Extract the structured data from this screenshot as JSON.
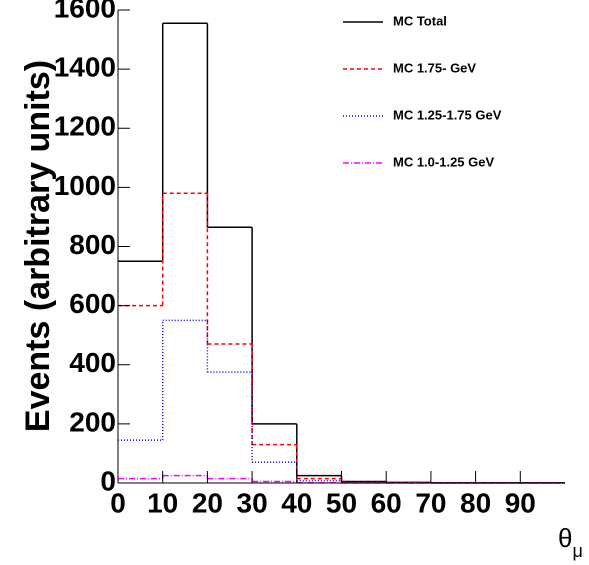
{
  "chart_data": {
    "type": "histogram",
    "y_label": "Events (arbitrary units)",
    "x_label": {
      "symbol": "θ",
      "subscript": "μ"
    },
    "bins": [
      0,
      10,
      20,
      30,
      40,
      50,
      60,
      70,
      80,
      90,
      100
    ],
    "series": [
      {
        "name": "MC Total",
        "color": "#000000",
        "dash": "none",
        "values": [
          750,
          1555,
          865,
          200,
          25,
          5,
          2,
          1,
          1,
          1
        ]
      },
      {
        "name": "MC 1.75- GeV",
        "color": "#ff0000",
        "dash": "4 3",
        "values": [
          600,
          980,
          470,
          130,
          15,
          2,
          1,
          0,
          0,
          0
        ]
      },
      {
        "name": "MC 1.25-1.75 GeV",
        "color": "#0000cc",
        "dash": "1 2",
        "values": [
          145,
          550,
          375,
          70,
          8,
          1,
          0,
          0,
          0,
          0
        ]
      },
      {
        "name": "MC 1.0-1.25 GeV",
        "color": "#ff00ff",
        "dash": "6 2 1 2",
        "values": [
          15,
          25,
          15,
          5,
          1,
          0,
          0,
          0,
          0,
          0
        ]
      }
    ],
    "xlim": [
      0,
      100
    ],
    "xticks": [
      0,
      10,
      20,
      30,
      40,
      50,
      60,
      70,
      80,
      90
    ],
    "ylim": [
      0,
      1600
    ],
    "yticks": [
      0,
      200,
      400,
      600,
      800,
      1000,
      1200,
      1400,
      1600
    ]
  }
}
